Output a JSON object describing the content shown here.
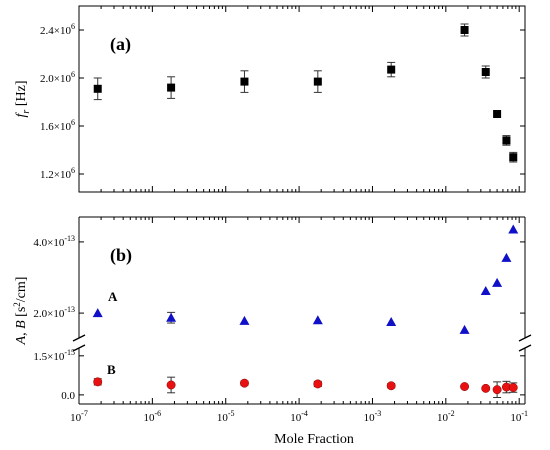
{
  "chart_data": [
    {
      "type": "scatter",
      "panel_label": "(a)",
      "ylabel": "f_r [Hz]",
      "ylabel_main": "f",
      "ylabel_sub": "r",
      "ylabel_unit": "[Hz]",
      "xscale": "log",
      "xlim": [
        1e-07,
        0.12
      ],
      "ylim": [
        1050000.0,
        2600000.0
      ],
      "yticks": [
        {
          "value": 1200000.0,
          "mant": "1.2×10",
          "exp": "6"
        },
        {
          "value": 1600000.0,
          "mant": "1.6×10",
          "exp": "6"
        },
        {
          "value": 2000000.0,
          "mant": "2.0×10",
          "exp": "6"
        },
        {
          "value": 2400000.0,
          "mant": "2.4×10",
          "exp": "6"
        }
      ],
      "series": [
        {
          "marker": "square",
          "color": "#000000",
          "x": [
            1.8e-07,
            1.8e-06,
            1.8e-05,
            0.00018,
            0.0018,
            0.018,
            0.035,
            0.05,
            0.067,
            0.083
          ],
          "y": [
            1910000.0,
            1920000.0,
            1970000.0,
            1970000.0,
            2070000.0,
            2400000.0,
            2050000.0,
            1700000.0,
            1480000.0,
            1340000.0
          ],
          "err": [
            90000.0,
            90000.0,
            90000.0,
            90000.0,
            60000.0,
            50000.0,
            50000.0,
            0.0,
            40000.0,
            40000.0
          ]
        }
      ]
    },
    {
      "type": "scatter",
      "panel_label": "(b)",
      "ylabel": "A, B [s²/cm]",
      "ylabel_main": "A, B",
      "ylabel_unit_pre": "[s",
      "ylabel_unit_sup": "2",
      "ylabel_unit_post": "/cm]",
      "xscale": "log",
      "xlim": [
        1e-07,
        0.12
      ],
      "broken_y_axis": true,
      "upper_ylim": [
        1.3e-13,
        4.7e-13
      ],
      "lower_ylim": [
        -3.5e-16,
        1.8e-15
      ],
      "upper_yticks": [
        {
          "value": 2e-13,
          "mant": "2.0×10",
          "exp": "-13"
        },
        {
          "value": 4e-13,
          "mant": "4.0×10",
          "exp": "-13"
        }
      ],
      "lower_yticks": [
        {
          "value": 0.0,
          "mant": "0.0",
          "exp": ""
        },
        {
          "value": 1.5e-15,
          "mant": "1.5×10",
          "exp": "-15"
        }
      ],
      "series": [
        {
          "name": "A",
          "marker": "triangle",
          "color": "#1010c8",
          "x": [
            1.8e-07,
            1.8e-06,
            1.8e-05,
            0.00018,
            0.0018,
            0.018,
            0.035,
            0.05,
            0.067,
            0.083
          ],
          "y": [
            2e-13,
            1.87e-13,
            1.78e-13,
            1.8e-13,
            1.75e-13,
            1.53e-13,
            2.62e-13,
            2.85e-13,
            3.55e-13,
            4.35e-13
          ],
          "err": [
            0.0,
            1.5e-14,
            0.0,
            0.0,
            0.0,
            0.0,
            0.0,
            0.0,
            0.0,
            0.0
          ]
        },
        {
          "name": "B",
          "marker": "circle",
          "color": "#e81010",
          "x": [
            1.8e-07,
            1.8e-06,
            1.8e-05,
            0.00018,
            0.0018,
            0.018,
            0.035,
            0.05,
            0.067,
            0.083
          ],
          "y": [
            5e-16,
            3.8e-16,
            4.5e-16,
            4.2e-16,
            3.5e-16,
            3.2e-16,
            2.5e-16,
            2e-16,
            3e-16,
            2.8e-16
          ],
          "err": [
            1.2e-16,
            3e-16,
            8e-17,
            1e-16,
            8e-17,
            5e-17,
            5e-17,
            3e-16,
            2.2e-16,
            1.8e-16
          ]
        }
      ]
    }
  ],
  "shared_x": {
    "xlabel": "Mole Fraction",
    "xticks": [
      {
        "value": 1e-07,
        "exp": "-7"
      },
      {
        "value": 1e-06,
        "exp": "-6"
      },
      {
        "value": 1e-05,
        "exp": "-5"
      },
      {
        "value": 0.0001,
        "exp": "-4"
      },
      {
        "value": 0.001,
        "exp": "-3"
      },
      {
        "value": 0.01,
        "exp": "-2"
      },
      {
        "value": 0.1,
        "exp": "-1"
      }
    ],
    "tick_base": "10"
  },
  "labels": {
    "panel_a": "(a)",
    "panel_b": "(b)",
    "series_a": "A",
    "series_b": "B",
    "xlabel": "Mole Fraction"
  }
}
